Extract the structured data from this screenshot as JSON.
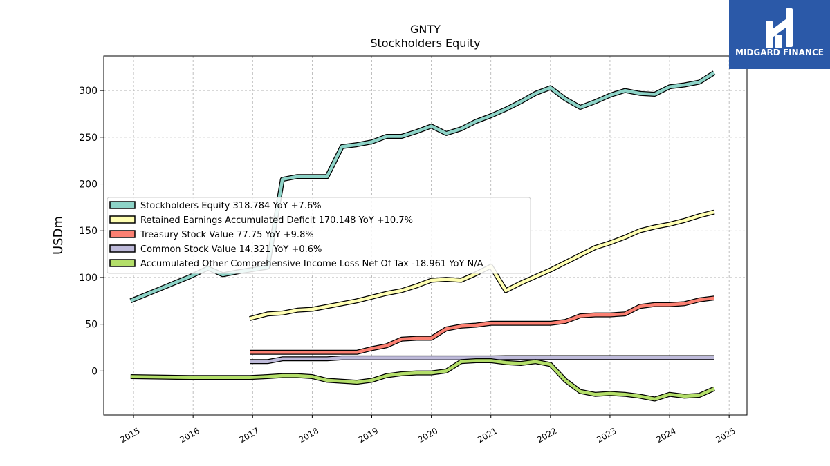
{
  "brand": {
    "name": "MIDGARD FINANCE",
    "bg_color": "#2b59a8",
    "logo_icon": "midgard-mark-icon"
  },
  "chart_data": {
    "type": "line",
    "title": "GNTY",
    "subtitle": "Stockholders  Equity",
    "xlabel": "",
    "ylabel": "USDm",
    "xlim": [
      2014.5,
      2025.3
    ],
    "ylim": [
      -47,
      337
    ],
    "yticks": [
      0,
      50,
      100,
      150,
      200,
      250,
      300
    ],
    "xticks": [
      2015,
      2016,
      2017,
      2018,
      2019,
      2020,
      2021,
      2022,
      2023,
      2024,
      2025
    ],
    "grid": true,
    "legend_position": "center-left",
    "series": [
      {
        "name": "Stockholders Equity  318.784 YoY +7.6%",
        "color": "#8dd3c7",
        "points": [
          [
            2014.95,
            75
          ],
          [
            2015.95,
            101
          ],
          [
            2016.25,
            110
          ],
          [
            2016.5,
            103
          ],
          [
            2016.75,
            106
          ],
          [
            2016.95,
            108
          ],
          [
            2017.25,
            111
          ],
          [
            2017.5,
            205
          ],
          [
            2017.75,
            208
          ],
          [
            2018.0,
            208
          ],
          [
            2018.25,
            208
          ],
          [
            2018.5,
            240
          ],
          [
            2018.75,
            242
          ],
          [
            2019.0,
            245
          ],
          [
            2019.25,
            251
          ],
          [
            2019.5,
            251
          ],
          [
            2019.75,
            256
          ],
          [
            2020.0,
            262
          ],
          [
            2020.25,
            254
          ],
          [
            2020.5,
            259
          ],
          [
            2020.75,
            267
          ],
          [
            2021.0,
            273
          ],
          [
            2021.25,
            280
          ],
          [
            2021.5,
            288
          ],
          [
            2021.75,
            297
          ],
          [
            2022.0,
            303
          ],
          [
            2022.25,
            291
          ],
          [
            2022.5,
            282
          ],
          [
            2022.75,
            288
          ],
          [
            2023.0,
            295
          ],
          [
            2023.25,
            300
          ],
          [
            2023.5,
            297
          ],
          [
            2023.75,
            296
          ],
          [
            2024.0,
            304
          ],
          [
            2024.25,
            306
          ],
          [
            2024.5,
            309
          ],
          [
            2024.75,
            319
          ]
        ]
      },
      {
        "name": "Retained Earnings Accumulated Deficit  170.148 YoY +10.7%",
        "color": "#ffffb3",
        "points": [
          [
            2016.95,
            56
          ],
          [
            2017.25,
            61
          ],
          [
            2017.5,
            62
          ],
          [
            2017.75,
            65
          ],
          [
            2018.0,
            66
          ],
          [
            2018.25,
            69
          ],
          [
            2018.5,
            72
          ],
          [
            2018.75,
            75
          ],
          [
            2019.0,
            79
          ],
          [
            2019.25,
            83
          ],
          [
            2019.5,
            86
          ],
          [
            2019.75,
            91
          ],
          [
            2020.0,
            97
          ],
          [
            2020.25,
            98
          ],
          [
            2020.5,
            97
          ],
          [
            2020.75,
            104
          ],
          [
            2021.0,
            112
          ],
          [
            2021.25,
            86
          ],
          [
            2021.5,
            94
          ],
          [
            2021.75,
            101
          ],
          [
            2022.0,
            108
          ],
          [
            2022.25,
            116
          ],
          [
            2022.5,
            124
          ],
          [
            2022.75,
            132
          ],
          [
            2023.0,
            137
          ],
          [
            2023.25,
            143
          ],
          [
            2023.5,
            150
          ],
          [
            2023.75,
            154
          ],
          [
            2024.0,
            157
          ],
          [
            2024.25,
            161
          ],
          [
            2024.5,
            166
          ],
          [
            2024.75,
            170
          ]
        ]
      },
      {
        "name": "Treasury Stock Value  77.75 YoY +9.8%",
        "color": "#fb8072",
        "points": [
          [
            2016.95,
            20
          ],
          [
            2017.5,
            20
          ],
          [
            2018.0,
            20
          ],
          [
            2018.5,
            20
          ],
          [
            2018.75,
            20
          ],
          [
            2019.0,
            24
          ],
          [
            2019.25,
            27
          ],
          [
            2019.5,
            34
          ],
          [
            2019.75,
            35
          ],
          [
            2020.0,
            35
          ],
          [
            2020.25,
            45
          ],
          [
            2020.5,
            48
          ],
          [
            2020.75,
            49
          ],
          [
            2021.0,
            51
          ],
          [
            2021.5,
            51
          ],
          [
            2022.0,
            51
          ],
          [
            2022.25,
            53
          ],
          [
            2022.5,
            59
          ],
          [
            2022.75,
            60
          ],
          [
            2023.0,
            60
          ],
          [
            2023.25,
            61
          ],
          [
            2023.5,
            69
          ],
          [
            2023.75,
            71
          ],
          [
            2024.0,
            71
          ],
          [
            2024.25,
            72
          ],
          [
            2024.5,
            76
          ],
          [
            2024.75,
            78
          ]
        ]
      },
      {
        "name": "Common Stock Value  14.321 YoY +0.6%",
        "color": "#bebada",
        "points": [
          [
            2016.95,
            10
          ],
          [
            2017.25,
            10
          ],
          [
            2017.5,
            13
          ],
          [
            2018.0,
            13
          ],
          [
            2018.25,
            13
          ],
          [
            2018.5,
            14
          ],
          [
            2019.0,
            14
          ],
          [
            2020.0,
            14
          ],
          [
            2021.0,
            14
          ],
          [
            2021.25,
            14.3
          ],
          [
            2022.0,
            14.3
          ],
          [
            2023.0,
            14.3
          ],
          [
            2024.0,
            14.3
          ],
          [
            2024.75,
            14.3
          ]
        ]
      },
      {
        "name": "Accumulated Other Comprehensive Income Loss Net Of Tax  -18.961 YoY N/A",
        "color": "#b3de69",
        "points": [
          [
            2014.95,
            -6
          ],
          [
            2015.95,
            -7
          ],
          [
            2016.95,
            -7
          ],
          [
            2017.25,
            -6
          ],
          [
            2017.5,
            -5
          ],
          [
            2017.75,
            -5
          ],
          [
            2018.0,
            -6
          ],
          [
            2018.25,
            -10
          ],
          [
            2018.5,
            -11
          ],
          [
            2018.75,
            -12
          ],
          [
            2019.0,
            -10
          ],
          [
            2019.25,
            -5
          ],
          [
            2019.5,
            -3
          ],
          [
            2019.75,
            -2
          ],
          [
            2020.0,
            -2
          ],
          [
            2020.25,
            0
          ],
          [
            2020.5,
            10
          ],
          [
            2020.75,
            11
          ],
          [
            2021.0,
            11
          ],
          [
            2021.25,
            9
          ],
          [
            2021.5,
            8
          ],
          [
            2021.75,
            10
          ],
          [
            2022.0,
            7
          ],
          [
            2022.25,
            -10
          ],
          [
            2022.5,
            -22
          ],
          [
            2022.75,
            -25
          ],
          [
            2023.0,
            -24
          ],
          [
            2023.25,
            -25
          ],
          [
            2023.5,
            -27
          ],
          [
            2023.75,
            -30
          ],
          [
            2024.0,
            -25
          ],
          [
            2024.25,
            -27
          ],
          [
            2024.5,
            -26
          ],
          [
            2024.75,
            -19
          ]
        ]
      }
    ]
  }
}
